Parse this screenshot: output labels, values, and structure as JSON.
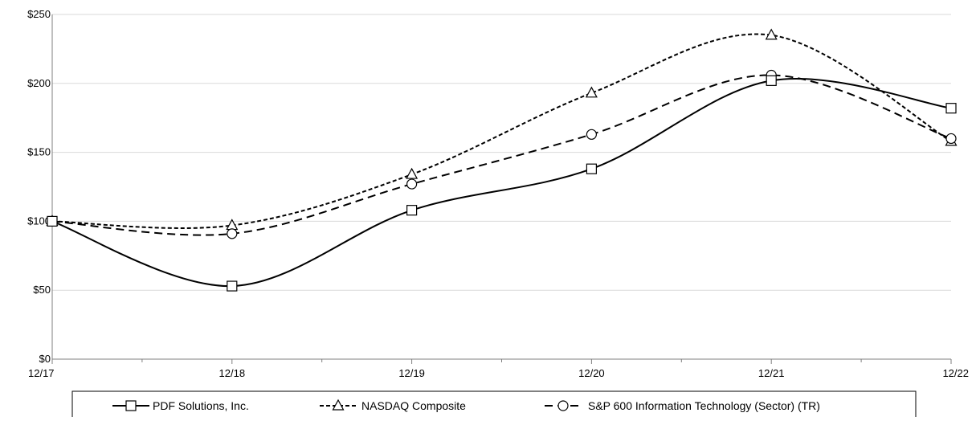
{
  "chart_data": {
    "type": "line",
    "title": "",
    "xlabel": "",
    "ylabel": "",
    "categories": [
      "12/17",
      "12/18",
      "12/19",
      "12/20",
      "12/21",
      "12/22"
    ],
    "y_tick_labels": [
      "$0",
      "$50",
      "$100",
      "$150",
      "$200",
      "$250"
    ],
    "y_tick_values": [
      0,
      50,
      100,
      150,
      200,
      250
    ],
    "ylim": [
      0,
      250
    ],
    "grid": "horizontal",
    "legend_position": "bottom",
    "series": [
      {
        "name": "PDF Solutions, Inc.",
        "values": [
          100,
          53,
          108,
          138,
          202,
          182
        ],
        "line": "solid",
        "marker": "square",
        "color": "#000000"
      },
      {
        "name": "NASDAQ Composite",
        "values": [
          100,
          97,
          134,
          193,
          235,
          158
        ],
        "line": "dotted",
        "marker": "triangle",
        "color": "#000000"
      },
      {
        "name": "S&P 600 Information Technology (Sector) (TR)",
        "values": [
          100,
          91,
          127,
          163,
          206,
          160
        ],
        "line": "dashed",
        "marker": "circle",
        "color": "#000000"
      }
    ]
  }
}
